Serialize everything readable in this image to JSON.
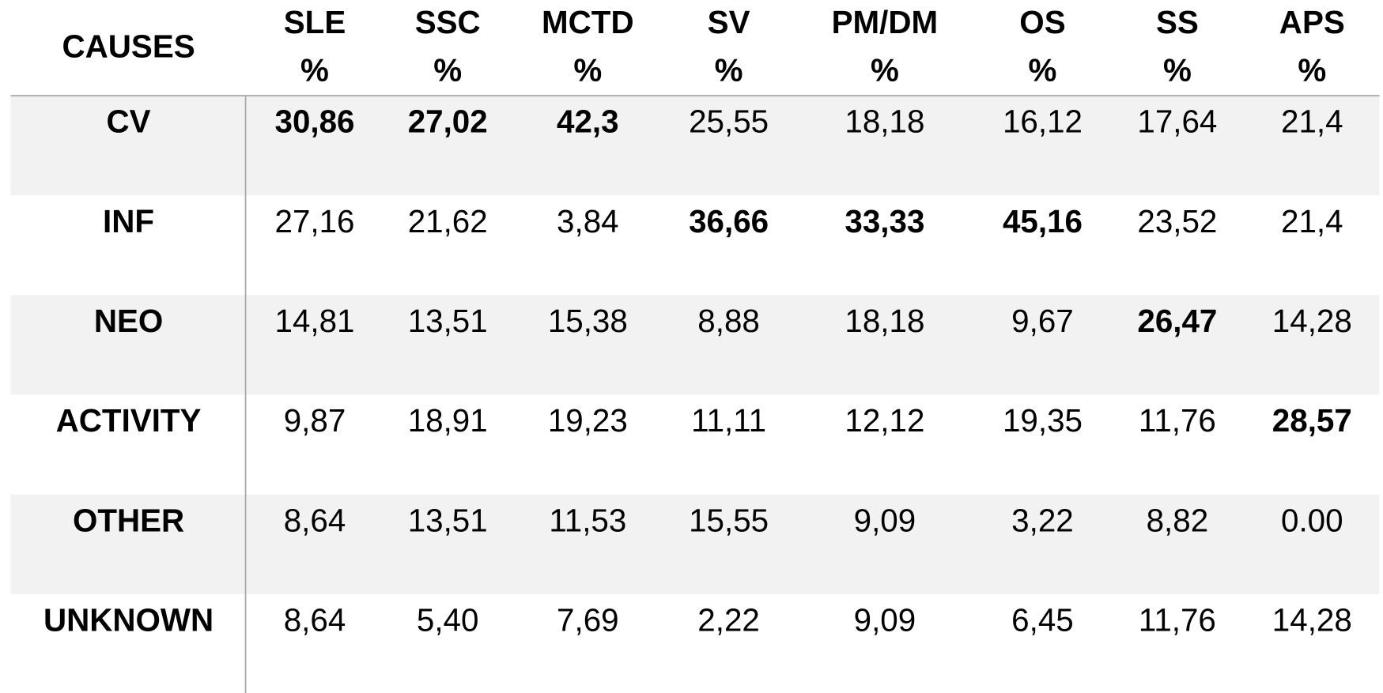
{
  "table": {
    "highlight_color": "#ff0000",
    "header": [
      {
        "name": "CAUSES"
      },
      {
        "name": "SLE",
        "unit": "%"
      },
      {
        "name": "SSC",
        "unit": "%"
      },
      {
        "name": "MCTD",
        "unit": "%"
      },
      {
        "name": "SV",
        "unit": "%"
      },
      {
        "name": "PM/DM",
        "unit": "%"
      },
      {
        "name": "OS",
        "unit": "%"
      },
      {
        "name": "SS",
        "unit": "%"
      },
      {
        "name": "APS",
        "unit": "%"
      }
    ],
    "rows": [
      {
        "label": "CV",
        "cells": [
          {
            "text": "30,86",
            "highlight": true
          },
          {
            "text": "27,02",
            "highlight": true
          },
          {
            "text": "42,3",
            "highlight": true
          },
          {
            "text": "25,55"
          },
          {
            "text": "18,18"
          },
          {
            "text": "16,12"
          },
          {
            "text": "17,64"
          },
          {
            "text": "21,4"
          }
        ]
      },
      {
        "label": "INF",
        "cells": [
          {
            "text": "27,16"
          },
          {
            "text": "21,62"
          },
          {
            "text": "3,84"
          },
          {
            "text": "36,66",
            "highlight": true
          },
          {
            "text": "33,33",
            "highlight": true
          },
          {
            "text": "45,16",
            "highlight": true
          },
          {
            "text": "23,52"
          },
          {
            "text": "21,4"
          }
        ]
      },
      {
        "label": "NEO",
        "cells": [
          {
            "text": "14,81"
          },
          {
            "text": "13,51"
          },
          {
            "text": "15,38"
          },
          {
            "text": "8,88"
          },
          {
            "text": "18,18"
          },
          {
            "text": "9,67"
          },
          {
            "text": "26,47",
            "highlight": true
          },
          {
            "text": "14,28"
          }
        ]
      },
      {
        "label": "ACTIVITY",
        "cells": [
          {
            "text": "9,87"
          },
          {
            "text": "18,91"
          },
          {
            "text": "19,23"
          },
          {
            "text": "11,11"
          },
          {
            "text": "12,12"
          },
          {
            "text": "19,35"
          },
          {
            "text": "11,76"
          },
          {
            "text": "28,57",
            "highlight": true
          }
        ]
      },
      {
        "label": "OTHER",
        "cells": [
          {
            "text": "8,64"
          },
          {
            "text": "13,51"
          },
          {
            "text": "11,53"
          },
          {
            "text": "15,55"
          },
          {
            "text": "9,09"
          },
          {
            "text": "3,22"
          },
          {
            "text": "8,82"
          },
          {
            "text": "0.00"
          }
        ]
      },
      {
        "label": "UNKNOWN",
        "cells": [
          {
            "text": "8,64"
          },
          {
            "text": "5,40"
          },
          {
            "text": "7,69"
          },
          {
            "text": "2,22"
          },
          {
            "text": "9,09"
          },
          {
            "text": "6,45"
          },
          {
            "text": "11,76"
          },
          {
            "text": "14,28"
          }
        ]
      }
    ]
  }
}
